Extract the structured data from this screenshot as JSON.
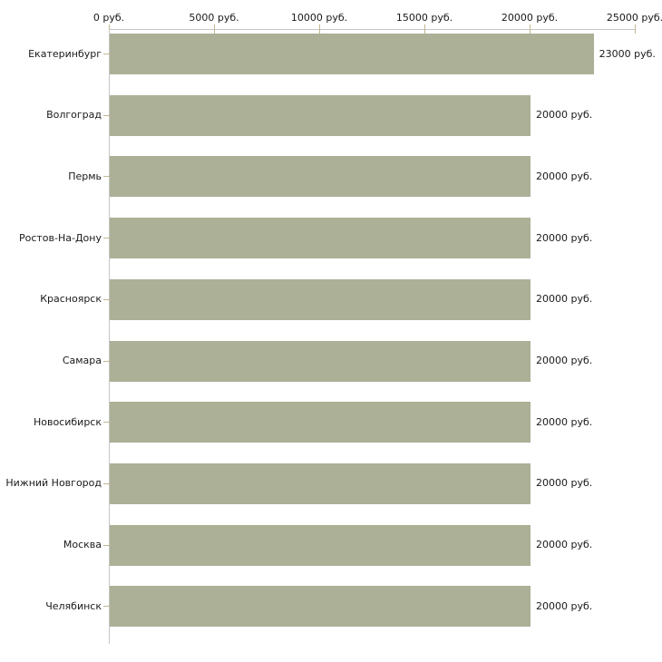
{
  "chart_data": {
    "type": "bar",
    "orientation": "horizontal",
    "title": "",
    "categories": [
      "Екатеринбург",
      "Волгоград",
      "Пермь",
      "Ростов-На-Дону",
      "Красноярск",
      "Самара",
      "Новосибирск",
      "Нижний Новгород",
      "Москва",
      "Челябинск"
    ],
    "values": [
      23000,
      20000,
      20000,
      20000,
      20000,
      20000,
      20000,
      20000,
      20000,
      20000
    ],
    "value_labels": [
      "23000 руб.",
      "20000 руб.",
      "20000 руб.",
      "20000 руб.",
      "20000 руб.",
      "20000 руб.",
      "20000 руб.",
      "20000 руб.",
      "20000 руб.",
      "20000 руб."
    ],
    "x_axis": {
      "position": "top",
      "min": 0,
      "max": 25000,
      "tick_values": [
        0,
        5000,
        10000,
        15000,
        20000,
        25000
      ],
      "tick_labels": [
        "0 руб.",
        "5000 руб.",
        "10000 руб.",
        "15000 руб.",
        "20000 руб.",
        "25000 руб."
      ]
    },
    "xlabel": "",
    "ylabel": "",
    "grid": false,
    "legend": false,
    "colors": {
      "bar": "#abb096",
      "axis_line": "#c6c6c6",
      "tick_mark": "#bfb890",
      "text": "#1a1a1a",
      "background": "#ffffff"
    }
  }
}
